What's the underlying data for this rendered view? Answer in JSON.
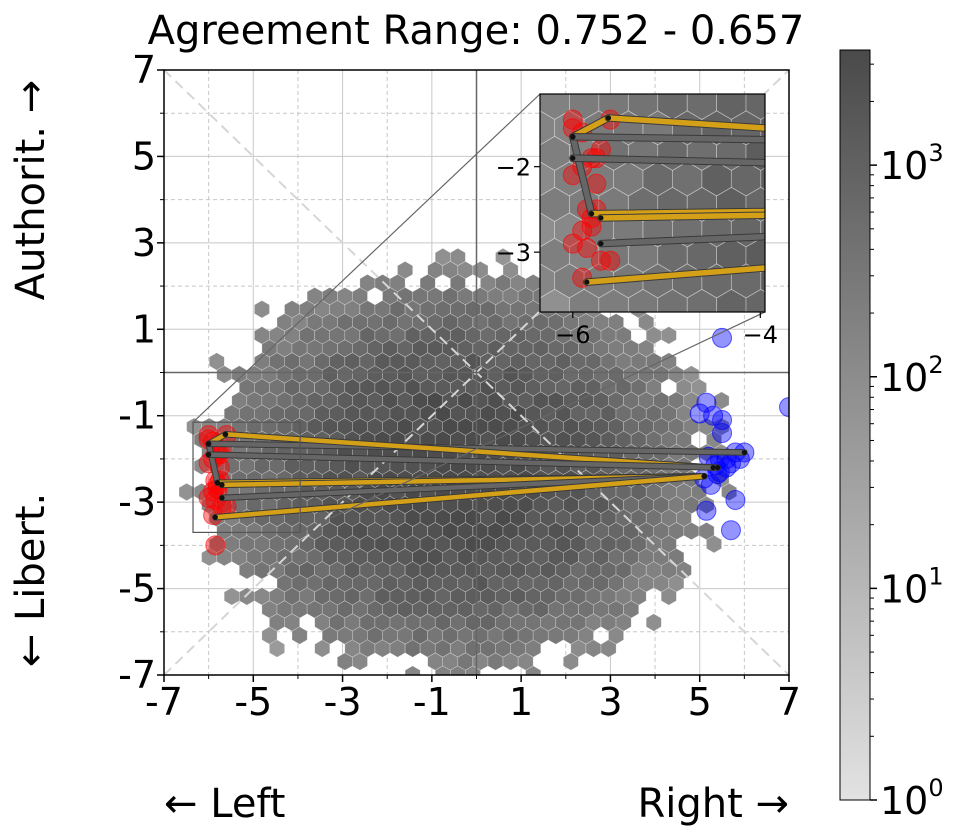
{
  "chart_data": {
    "type": "scatter",
    "title": "Agreement Range: 0.752 - 0.657",
    "xlabel_left": "← Left",
    "xlabel_right": "Right →",
    "ylabel_top": "Authorit. →",
    "ylabel_bottom": "← Libert.",
    "xlim": [
      -7,
      7
    ],
    "ylim": [
      -7,
      7
    ],
    "x_ticks": [
      -7,
      -5,
      -3,
      -1,
      1,
      3,
      5,
      7
    ],
    "y_ticks": [
      -7,
      -5,
      -3,
      -1,
      1,
      3,
      5,
      7
    ],
    "x_tick_labels": [
      "-7",
      "-5",
      "-3",
      "-1",
      "1",
      "3",
      "5",
      "7"
    ],
    "y_tick_labels": [
      "-7",
      "-5",
      "-3",
      "-1",
      "1",
      "3",
      "5",
      "7"
    ],
    "grid": true,
    "background": {
      "type": "hexbin",
      "center": [
        -0.5,
        -2.3
      ],
      "spread": [
        2.8,
        2.3
      ],
      "colormap": "grey",
      "log_scale": true
    },
    "colorbar": {
      "ticks": [
        {
          "base": "10",
          "exp": "0",
          "value": 1
        },
        {
          "base": "10",
          "exp": "1",
          "value": 10
        },
        {
          "base": "10",
          "exp": "2",
          "value": 100
        },
        {
          "base": "10",
          "exp": "3",
          "value": 1000
        }
      ],
      "max_value": 3500
    },
    "red_points": {
      "color": "#ff0000",
      "x": [
        -6.0,
        -6.0,
        -5.9,
        -5.8,
        -5.9,
        -5.7,
        -5.75,
        -6.0,
        -5.85,
        -5.75,
        -5.85,
        -5.7,
        -5.6,
        -6.0,
        -5.9,
        -5.8,
        -5.8,
        -5.9,
        -5.75,
        -5.6,
        -5.85
      ],
      "y": [
        -1.45,
        -1.55,
        -1.6,
        -1.9,
        -2.0,
        -1.8,
        -1.9,
        -2.1,
        -2.5,
        -2.5,
        -2.95,
        -3.1,
        -3.1,
        -2.9,
        -3.3,
        -2.7,
        -2.6,
        -2.75,
        -2.2,
        -1.45,
        -4.0
      ]
    },
    "blue_points": {
      "color": "#0000ff",
      "x": [
        5.15,
        5.0,
        5.3,
        5.5,
        5.5,
        5.8,
        5.7,
        5.9,
        6.0,
        5.6,
        5.4,
        5.6,
        5.2,
        5.8,
        5.7,
        5.45,
        5.35,
        5.15,
        5.25,
        5.1,
        5.45,
        7.0,
        5.5
      ],
      "y": [
        -0.7,
        -0.95,
        -1.0,
        -1.1,
        -1.4,
        -1.85,
        -2.1,
        -2.0,
        -1.85,
        -2.2,
        -2.35,
        -2.0,
        -1.95,
        -2.95,
        -3.65,
        -2.3,
        -2.15,
        -3.2,
        -2.6,
        -2.45,
        -2.0,
        -0.8,
        0.8
      ]
    },
    "connections": [
      {
        "x1": -5.62,
        "y1": -1.43,
        "x2": -6.0,
        "y2": -1.65,
        "color": "#d4a017"
      },
      {
        "x1": -6.0,
        "y1": -1.65,
        "x2": -5.8,
        "y2": -2.55,
        "color": "#666666"
      },
      {
        "x1": -6.0,
        "y1": -1.65,
        "x2": 6.0,
        "y2": -1.85,
        "color": "#666666"
      },
      {
        "x1": -5.62,
        "y1": -1.43,
        "x2": 5.3,
        "y2": -2.2,
        "color": "#d4a017"
      },
      {
        "x1": -6.0,
        "y1": -1.9,
        "x2": 5.4,
        "y2": -2.2,
        "color": "#666666"
      },
      {
        "x1": -5.8,
        "y1": -2.55,
        "x2": 5.1,
        "y2": -2.4,
        "color": "#d4a017"
      },
      {
        "x1": -5.7,
        "y1": -2.6,
        "x2": 5.1,
        "y2": -2.4,
        "color": "#d4a017"
      },
      {
        "x1": -5.7,
        "y1": -2.9,
        "x2": 5.1,
        "y2": -2.4,
        "color": "#666666"
      },
      {
        "x1": -5.85,
        "y1": -3.35,
        "x2": 5.1,
        "y2": -2.4,
        "color": "#d4a017"
      }
    ],
    "inset": {
      "xlim": [
        -6.35,
        -3.95
      ],
      "ylim": [
        -3.7,
        -1.15
      ],
      "x_ticks": [
        -6,
        -4
      ],
      "y_ticks": [
        -2,
        -3
      ],
      "x_tick_labels": [
        "−6",
        "−4"
      ],
      "y_tick_labels": [
        "−2",
        "−3"
      ]
    }
  }
}
